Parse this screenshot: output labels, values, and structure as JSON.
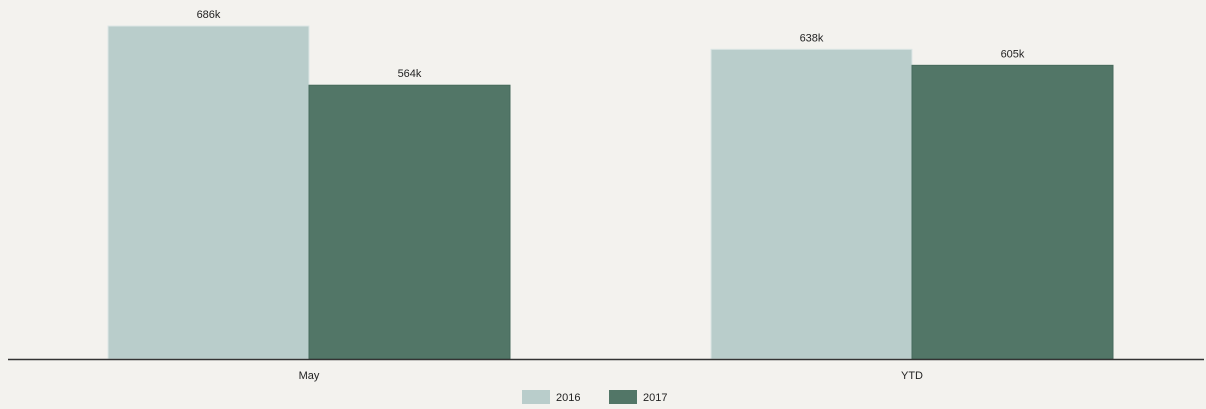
{
  "chart_data": {
    "type": "bar",
    "categories": [
      "May",
      "YTD"
    ],
    "series": [
      {
        "name": "2016",
        "values": [
          686,
          638
        ],
        "labels": [
          "686k",
          "638k"
        ],
        "color": "#b9cdcb"
      },
      {
        "name": "2017",
        "values": [
          564,
          605
        ],
        "labels": [
          "564k",
          "605k"
        ],
        "color": "#527667"
      }
    ],
    "unit": "k",
    "ylim": [
      0,
      700
    ],
    "grid": false,
    "legend": "bottom-center",
    "title": "",
    "xlabel": "",
    "ylabel": ""
  }
}
